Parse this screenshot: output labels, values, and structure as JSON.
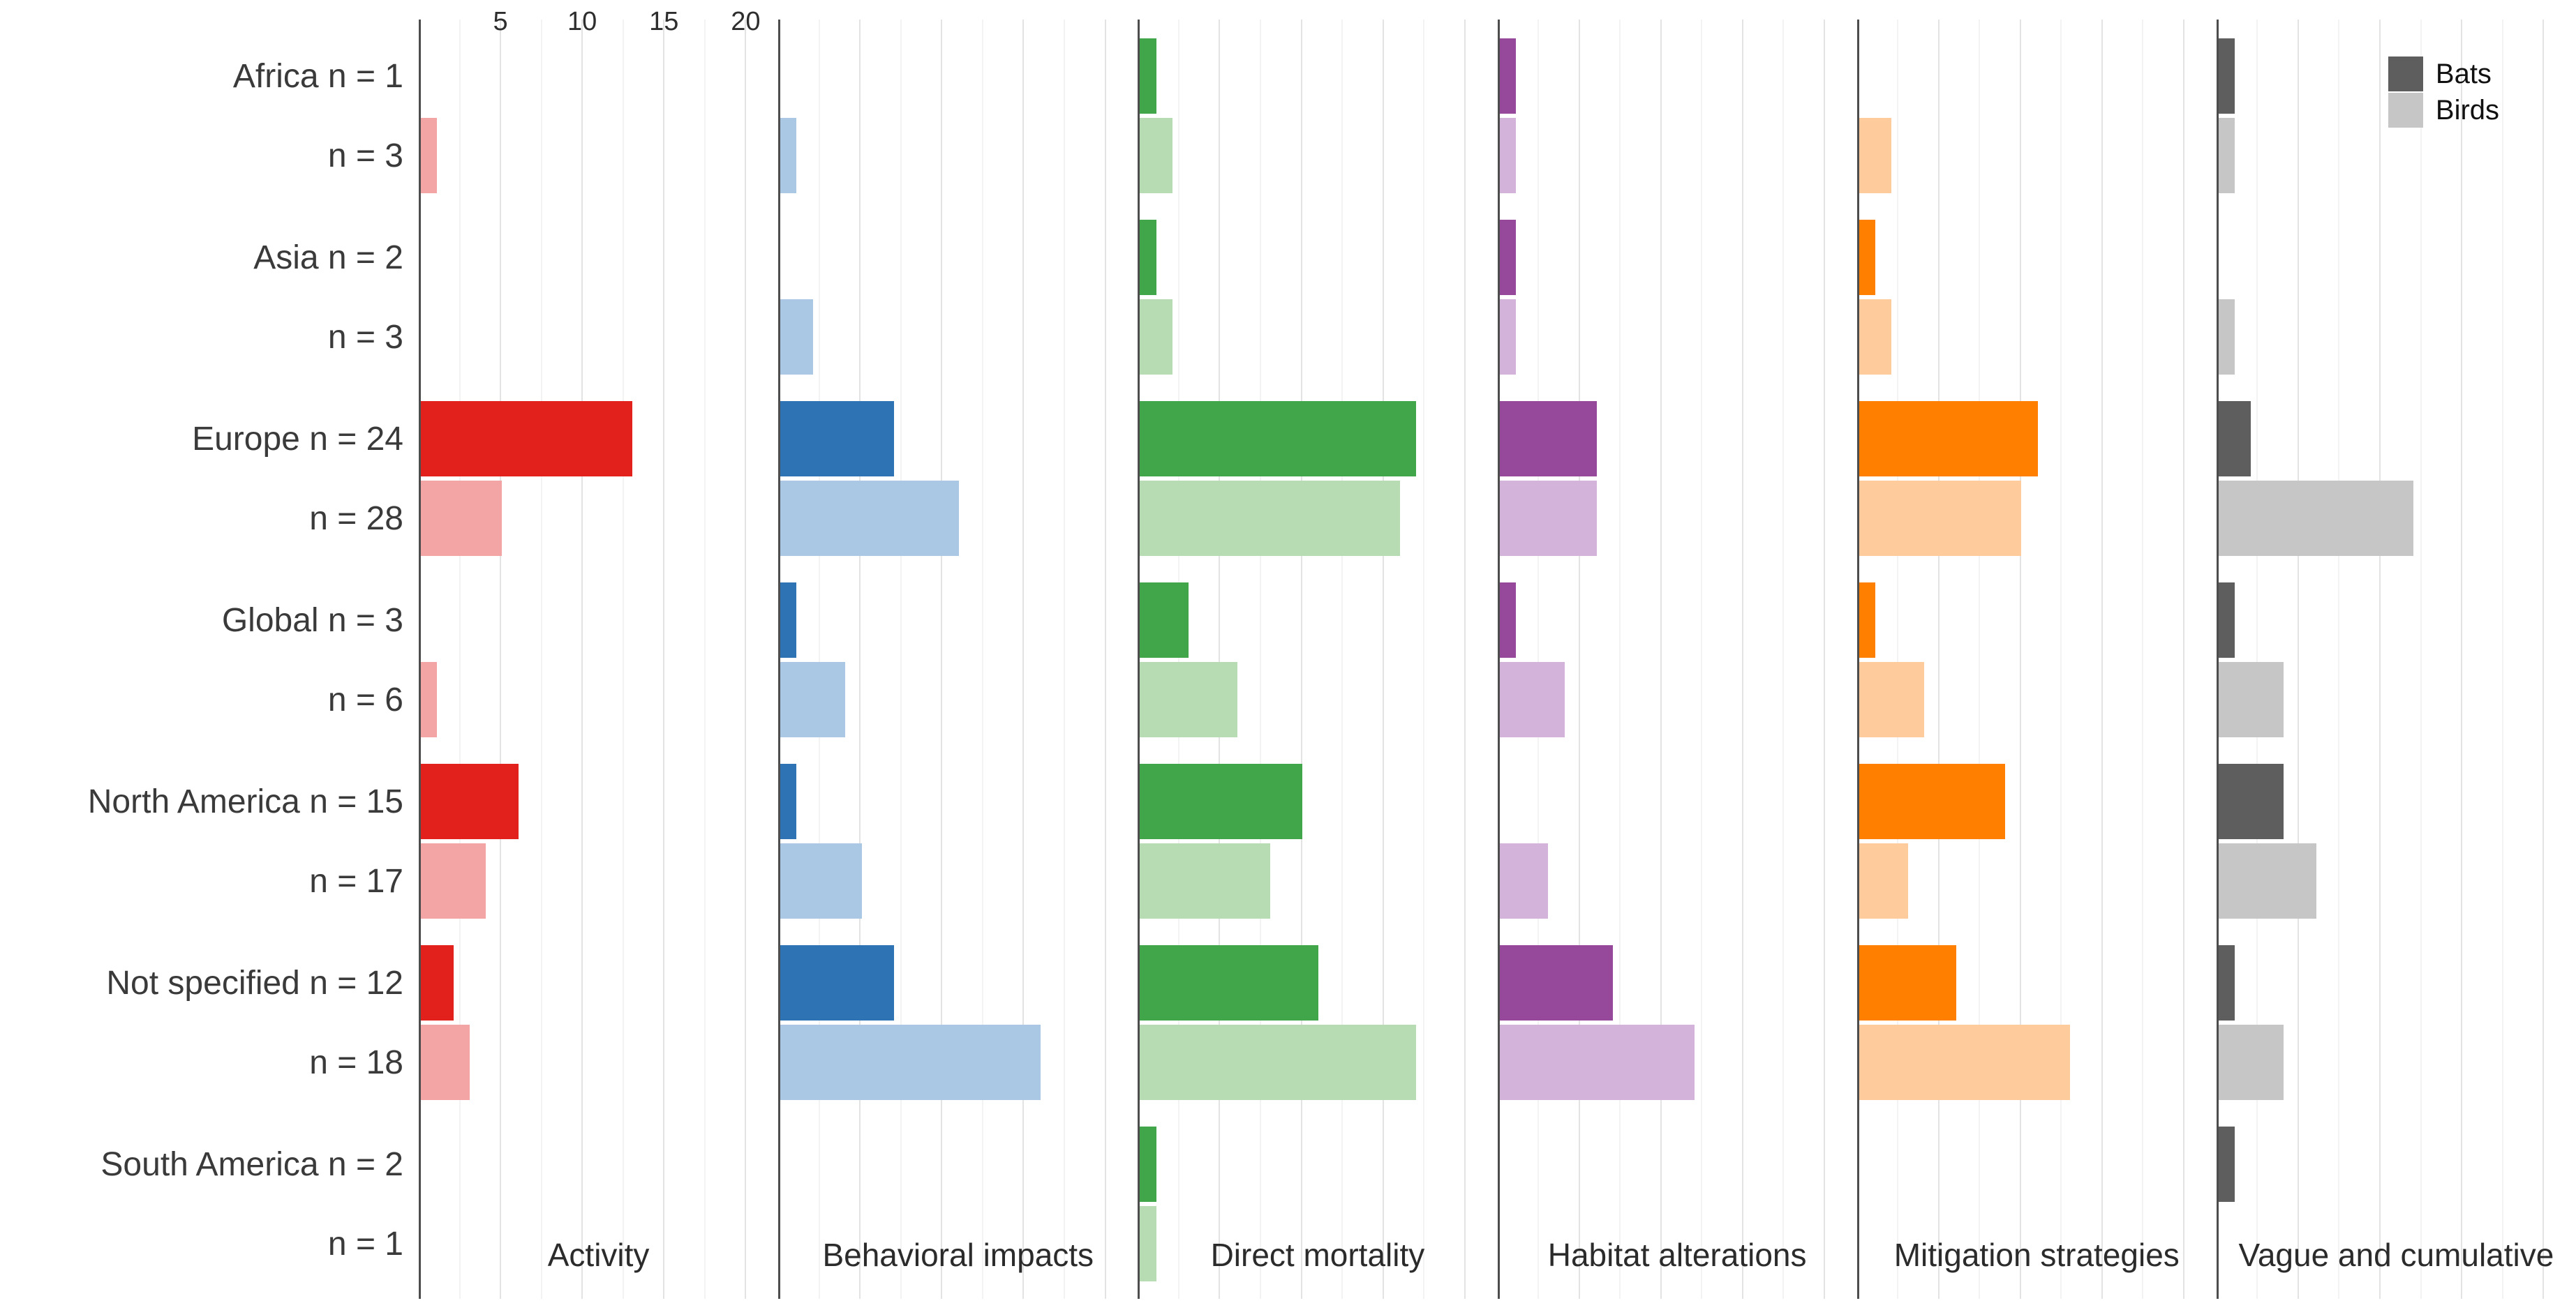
{
  "chart_data": {
    "type": "bar",
    "orientation": "horizontal",
    "title": "",
    "x_axis": {
      "ticks": [
        5,
        10,
        15,
        20
      ],
      "minor_ticks": [
        2.5,
        7.5,
        12.5,
        17.5
      ],
      "max": 22,
      "grid": "on",
      "axis_line_color": "#4d4d4d"
    },
    "legend": {
      "position": "top-right",
      "entries": [
        {
          "label": "Bats",
          "color": "#5e5e5e"
        },
        {
          "label": "Birds",
          "color": "#c6c6c6"
        }
      ]
    },
    "regions": [
      {
        "name": "Africa",
        "bats_label": "Africa n = 1",
        "birds_label": "n = 3"
      },
      {
        "name": "Asia",
        "bats_label": "Asia n = 2",
        "birds_label": "n = 3"
      },
      {
        "name": "Europe",
        "bats_label": "Europe n = 24",
        "birds_label": "n = 28"
      },
      {
        "name": "Global",
        "bats_label": "Global n = 3",
        "birds_label": "n = 6"
      },
      {
        "name": "North America",
        "bats_label": "North America n = 15",
        "birds_label": "n = 17"
      },
      {
        "name": "Not specified",
        "bats_label": "Not specified n = 12",
        "birds_label": "n = 18"
      },
      {
        "name": "South America",
        "bats_label": "South America n = 2",
        "birds_label": "n = 1"
      }
    ],
    "panels": [
      {
        "title": "Activity",
        "color_dark": "#e3211c",
        "color_light": "#f3a5a5",
        "bats": [
          0,
          0,
          13,
          0,
          6,
          2,
          0
        ],
        "birds": [
          1,
          0,
          5,
          1,
          4,
          3,
          0
        ]
      },
      {
        "title": "Behavioral impacts",
        "color_dark": "#2e74b5",
        "color_light": "#aac8e3",
        "bats": [
          0,
          0,
          7,
          1,
          1,
          7,
          0
        ],
        "birds": [
          1,
          2,
          11,
          4,
          5,
          16,
          0
        ]
      },
      {
        "title": "Direct mortality",
        "color_dark": "#41a549",
        "color_light": "#b7dbb3",
        "bats": [
          1,
          1,
          17,
          3,
          10,
          11,
          1
        ],
        "birds": [
          2,
          2,
          16,
          6,
          8,
          17,
          1
        ]
      },
      {
        "title": "Habitat alterations",
        "color_dark": "#96489b",
        "color_light": "#d3b3da",
        "bats": [
          1,
          1,
          6,
          1,
          0,
          7,
          0
        ],
        "birds": [
          1,
          1,
          6,
          4,
          3,
          12,
          0
        ]
      },
      {
        "title": "Mitigation strategies",
        "color_dark": "#ff8000",
        "color_light": "#fecc9c",
        "bats": [
          0,
          1,
          11,
          1,
          9,
          6,
          0
        ],
        "birds": [
          2,
          2,
          10,
          4,
          3,
          13,
          0
        ]
      },
      {
        "title": "Vague and cumulative",
        "color_dark": "#5e5e5e",
        "color_light": "#c6c6c6",
        "bats": [
          1,
          0,
          2,
          1,
          4,
          1,
          1
        ],
        "birds": [
          1,
          1,
          12,
          4,
          6,
          4,
          0
        ]
      }
    ]
  }
}
